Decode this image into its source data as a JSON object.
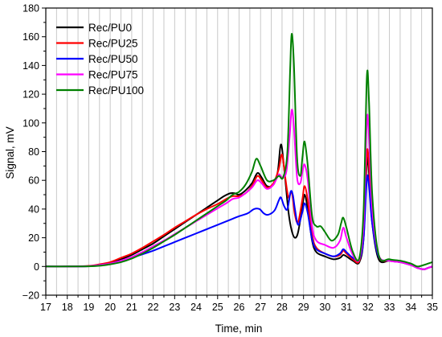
{
  "chart_data": {
    "type": "line",
    "xlabel": "Time, min",
    "ylabel": "Signal, mV",
    "xlim": [
      17,
      35
    ],
    "ylim": [
      -20,
      180
    ],
    "xticks": [
      17,
      18,
      19,
      20,
      21,
      22,
      23,
      24,
      25,
      26,
      27,
      28,
      29,
      30,
      31,
      32,
      33,
      34,
      35
    ],
    "yticks": [
      -20,
      0,
      20,
      40,
      60,
      80,
      100,
      120,
      140,
      160,
      180
    ],
    "xgrid_step": 0.5,
    "grid": "vertical",
    "legend_position": "top-left",
    "series": [
      {
        "name": "Rec/PU0",
        "color": "#000000",
        "points": [
          [
            17,
            0
          ],
          [
            18,
            0
          ],
          [
            19,
            0.3
          ],
          [
            19.5,
            1
          ],
          [
            20,
            2.5
          ],
          [
            20.5,
            5
          ],
          [
            21,
            8
          ],
          [
            21.5,
            12
          ],
          [
            22,
            16
          ],
          [
            22.5,
            21
          ],
          [
            23,
            26
          ],
          [
            23.5,
            31
          ],
          [
            24,
            36
          ],
          [
            24.5,
            41
          ],
          [
            25,
            46
          ],
          [
            25.3,
            49
          ],
          [
            25.6,
            51
          ],
          [
            25.8,
            51
          ],
          [
            26,
            50
          ],
          [
            26.3,
            53
          ],
          [
            26.6,
            58
          ],
          [
            26.85,
            65
          ],
          [
            27.05,
            62
          ],
          [
            27.3,
            56
          ],
          [
            27.6,
            57
          ],
          [
            27.8,
            66
          ],
          [
            27.95,
            85
          ],
          [
            28.1,
            68
          ],
          [
            28.3,
            38
          ],
          [
            28.45,
            25
          ],
          [
            28.6,
            20
          ],
          [
            28.75,
            24
          ],
          [
            28.95,
            42
          ],
          [
            29.05,
            50
          ],
          [
            29.2,
            40
          ],
          [
            29.4,
            18
          ],
          [
            29.6,
            10
          ],
          [
            30,
            7
          ],
          [
            30.4,
            5
          ],
          [
            30.7,
            6
          ],
          [
            30.85,
            8
          ],
          [
            31,
            7
          ],
          [
            31.3,
            4
          ],
          [
            31.6,
            3
          ],
          [
            31.8,
            20
          ],
          [
            31.95,
            73
          ],
          [
            32.05,
            65
          ],
          [
            32.2,
            30
          ],
          [
            32.5,
            5
          ],
          [
            33,
            4
          ],
          [
            33.5,
            3
          ],
          [
            34,
            1
          ],
          [
            34.3,
            -1
          ],
          [
            34.6,
            -2
          ],
          [
            34.8,
            -1
          ],
          [
            35,
            0
          ]
        ]
      },
      {
        "name": "Rec/PU25",
        "color": "#ff0000",
        "points": [
          [
            17,
            0
          ],
          [
            18,
            0
          ],
          [
            19,
            0.4
          ],
          [
            19.5,
            1.5
          ],
          [
            20,
            3
          ],
          [
            20.5,
            6
          ],
          [
            21,
            9
          ],
          [
            21.5,
            13
          ],
          [
            22,
            17.5
          ],
          [
            22.5,
            22
          ],
          [
            23,
            27
          ],
          [
            23.5,
            31.5
          ],
          [
            24,
            36
          ],
          [
            24.5,
            40
          ],
          [
            25,
            43.5
          ],
          [
            25.4,
            47
          ],
          [
            25.7,
            49
          ],
          [
            26,
            49
          ],
          [
            26.3,
            51
          ],
          [
            26.6,
            56
          ],
          [
            26.85,
            63
          ],
          [
            27.05,
            60
          ],
          [
            27.3,
            55
          ],
          [
            27.6,
            58
          ],
          [
            27.85,
            68
          ],
          [
            28,
            78
          ],
          [
            28.15,
            62
          ],
          [
            28.3,
            48
          ],
          [
            28.45,
            52
          ],
          [
            28.6,
            36
          ],
          [
            28.75,
            31
          ],
          [
            28.95,
            47
          ],
          [
            29.05,
            56
          ],
          [
            29.2,
            46
          ],
          [
            29.4,
            22
          ],
          [
            29.6,
            13
          ],
          [
            30,
            9
          ],
          [
            30.4,
            7
          ],
          [
            30.7,
            8
          ],
          [
            30.85,
            11
          ],
          [
            31,
            9
          ],
          [
            31.3,
            5
          ],
          [
            31.6,
            4
          ],
          [
            31.8,
            25
          ],
          [
            31.95,
            79
          ],
          [
            32.05,
            70
          ],
          [
            32.2,
            35
          ],
          [
            32.5,
            7
          ],
          [
            33,
            4
          ],
          [
            33.5,
            3
          ],
          [
            34,
            1
          ],
          [
            34.3,
            -1
          ],
          [
            34.6,
            -2
          ],
          [
            34.8,
            -1
          ],
          [
            35,
            0
          ]
        ]
      },
      {
        "name": "Rec/PU50",
        "color": "#0000ff",
        "points": [
          [
            17,
            0
          ],
          [
            18,
            0
          ],
          [
            19,
            0.2
          ],
          [
            19.5,
            1
          ],
          [
            20,
            2
          ],
          [
            20.5,
            4
          ],
          [
            21,
            6
          ],
          [
            21.5,
            8.5
          ],
          [
            22,
            11
          ],
          [
            22.5,
            14
          ],
          [
            23,
            17
          ],
          [
            23.5,
            20
          ],
          [
            24,
            23
          ],
          [
            24.5,
            26
          ],
          [
            25,
            29
          ],
          [
            25.5,
            32
          ],
          [
            26,
            35
          ],
          [
            26.4,
            37
          ],
          [
            26.7,
            40
          ],
          [
            26.95,
            40
          ],
          [
            27.15,
            37
          ],
          [
            27.35,
            36
          ],
          [
            27.65,
            39
          ],
          [
            27.85,
            46
          ],
          [
            27.95,
            48
          ],
          [
            28.1,
            42
          ],
          [
            28.25,
            40
          ],
          [
            28.4,
            52
          ],
          [
            28.5,
            50
          ],
          [
            28.6,
            40
          ],
          [
            28.75,
            29
          ],
          [
            28.95,
            38
          ],
          [
            29.05,
            44
          ],
          [
            29.2,
            37
          ],
          [
            29.4,
            19
          ],
          [
            29.6,
            12
          ],
          [
            30,
            9
          ],
          [
            30.4,
            7
          ],
          [
            30.7,
            9
          ],
          [
            30.85,
            12
          ],
          [
            31,
            10
          ],
          [
            31.3,
            6
          ],
          [
            31.6,
            5
          ],
          [
            31.8,
            20
          ],
          [
            31.95,
            61
          ],
          [
            32.05,
            56
          ],
          [
            32.2,
            30
          ],
          [
            32.5,
            7
          ],
          [
            33,
            4
          ],
          [
            33.5,
            3
          ],
          [
            34,
            1
          ],
          [
            34.3,
            -1
          ],
          [
            34.6,
            -2
          ],
          [
            34.8,
            -1
          ],
          [
            35,
            0
          ]
        ]
      },
      {
        "name": "Rec/PU75",
        "color": "#ff00ff",
        "points": [
          [
            17,
            0
          ],
          [
            18,
            0
          ],
          [
            19,
            0.2
          ],
          [
            19.5,
            1
          ],
          [
            20,
            2
          ],
          [
            20.5,
            4
          ],
          [
            21,
            6.5
          ],
          [
            21.5,
            10
          ],
          [
            22,
            14
          ],
          [
            22.5,
            18
          ],
          [
            23,
            22.5
          ],
          [
            23.5,
            27
          ],
          [
            24,
            31.5
          ],
          [
            24.5,
            36
          ],
          [
            25,
            40.5
          ],
          [
            25.4,
            44
          ],
          [
            25.7,
            47
          ],
          [
            26,
            48
          ],
          [
            26.3,
            51
          ],
          [
            26.6,
            55
          ],
          [
            26.85,
            60
          ],
          [
            27.05,
            58
          ],
          [
            27.3,
            54
          ],
          [
            27.6,
            57
          ],
          [
            27.85,
            64
          ],
          [
            28,
            62
          ],
          [
            28.2,
            66
          ],
          [
            28.35,
            90
          ],
          [
            28.45,
            109
          ],
          [
            28.55,
            98
          ],
          [
            28.7,
            62
          ],
          [
            28.85,
            58
          ],
          [
            28.95,
            66
          ],
          [
            29.05,
            71
          ],
          [
            29.2,
            60
          ],
          [
            29.4,
            28
          ],
          [
            29.6,
            18
          ],
          [
            30,
            15
          ],
          [
            30.4,
            13
          ],
          [
            30.7,
            18
          ],
          [
            30.85,
            27
          ],
          [
            31,
            20
          ],
          [
            31.3,
            8
          ],
          [
            31.6,
            5
          ],
          [
            31.8,
            30
          ],
          [
            31.95,
            102
          ],
          [
            32.05,
            90
          ],
          [
            32.2,
            40
          ],
          [
            32.5,
            8
          ],
          [
            33,
            4
          ],
          [
            33.5,
            3
          ],
          [
            34,
            1
          ],
          [
            34.3,
            -1
          ],
          [
            34.6,
            -2
          ],
          [
            34.8,
            -1
          ],
          [
            35,
            0
          ]
        ]
      },
      {
        "name": "Rec/PU100",
        "color": "#008000",
        "points": [
          [
            17,
            0
          ],
          [
            18,
            0
          ],
          [
            19,
            0.1
          ],
          [
            19.5,
            0.5
          ],
          [
            20,
            1.5
          ],
          [
            20.5,
            3
          ],
          [
            21,
            5.5
          ],
          [
            21.5,
            9
          ],
          [
            22,
            13
          ],
          [
            22.5,
            17.5
          ],
          [
            23,
            22
          ],
          [
            23.5,
            27
          ],
          [
            24,
            32
          ],
          [
            24.5,
            37
          ],
          [
            25,
            42
          ],
          [
            25.4,
            46
          ],
          [
            25.7,
            50
          ],
          [
            26,
            52
          ],
          [
            26.3,
            57
          ],
          [
            26.6,
            66
          ],
          [
            26.8,
            75
          ],
          [
            27,
            70
          ],
          [
            27.3,
            60
          ],
          [
            27.6,
            60
          ],
          [
            27.85,
            63
          ],
          [
            28.05,
            62
          ],
          [
            28.25,
            80
          ],
          [
            28.38,
            138
          ],
          [
            28.45,
            162
          ],
          [
            28.55,
            142
          ],
          [
            28.7,
            76
          ],
          [
            28.85,
            63
          ],
          [
            28.95,
            76
          ],
          [
            29.05,
            87
          ],
          [
            29.2,
            70
          ],
          [
            29.4,
            35
          ],
          [
            29.6,
            28
          ],
          [
            29.8,
            28
          ],
          [
            30,
            24
          ],
          [
            30.3,
            18
          ],
          [
            30.6,
            22
          ],
          [
            30.75,
            30
          ],
          [
            30.85,
            34
          ],
          [
            31,
            27
          ],
          [
            31.3,
            10
          ],
          [
            31.6,
            6
          ],
          [
            31.8,
            40
          ],
          [
            31.95,
            132
          ],
          [
            32.05,
            115
          ],
          [
            32.2,
            50
          ],
          [
            32.5,
            8
          ],
          [
            33,
            5
          ],
          [
            33.5,
            4
          ],
          [
            34,
            2
          ],
          [
            34.3,
            0
          ],
          [
            34.6,
            1
          ],
          [
            34.8,
            2
          ],
          [
            35,
            3
          ]
        ]
      }
    ]
  }
}
